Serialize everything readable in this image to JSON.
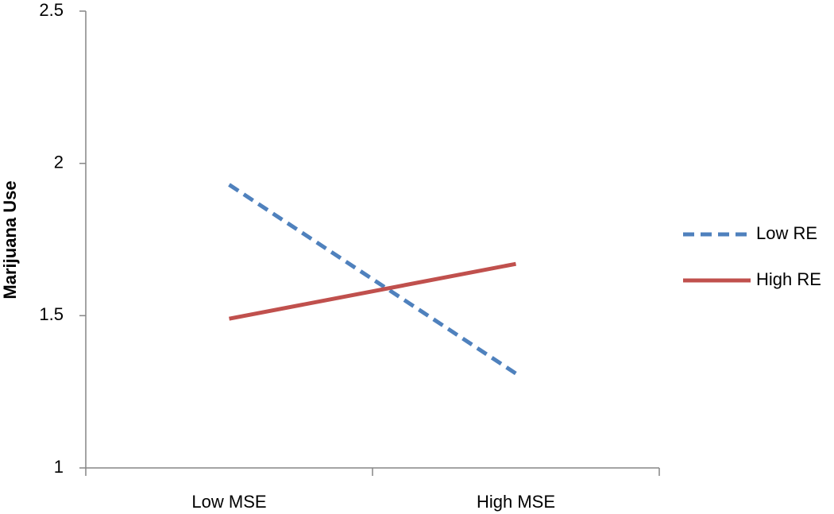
{
  "chart_data": {
    "type": "line",
    "y_label": "Marijuana Use",
    "categories": [
      "Low MSE",
      "High MSE"
    ],
    "series": [
      {
        "name": "Low RE",
        "color": "#4f81bd",
        "linestyle": "dashed",
        "values": [
          1.93,
          1.31
        ]
      },
      {
        "name": "High RE",
        "color": "#c0504d",
        "linestyle": "solid",
        "values": [
          1.49,
          1.67
        ]
      }
    ],
    "ylim": [
      1,
      2.5
    ],
    "yticks": [
      1,
      1.5,
      2,
      2.5
    ],
    "grid": false,
    "legend": "right"
  }
}
